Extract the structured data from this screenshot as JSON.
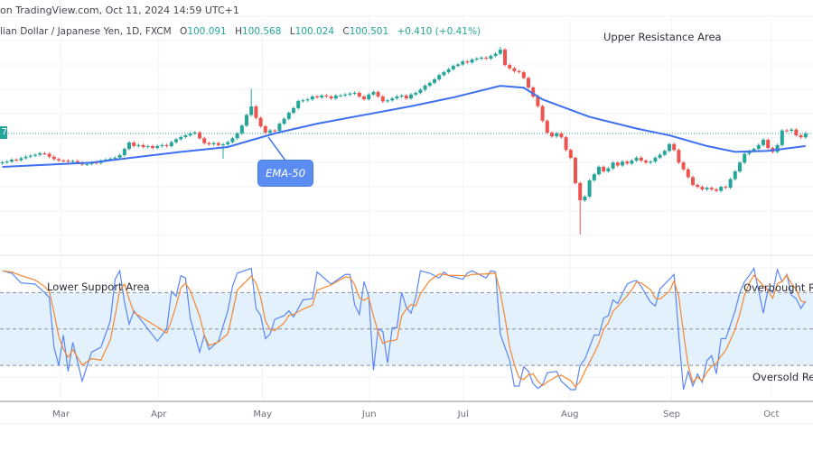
{
  "header": {
    "source_line": "on TradingView.com, Oct 11, 2024 14:59 UTC+1",
    "symbol": "lian Dollar / Japanese Yen, 1D, FXCM",
    "open_label": "O",
    "open": "100.091",
    "high_label": "H",
    "high": "100.568",
    "low_label": "L",
    "low": "100.024",
    "close_label": "C",
    "close": "100.501",
    "change": "+0.410 (+0.41%)"
  },
  "price_label_fragment": "7",
  "annotations": {
    "upper_resistance": "Upper Resistance Area",
    "lower_support": "Lower Support Area",
    "overbought": "Overbought Re",
    "oversold": "Oversold Reg",
    "ema_callout": "EMA-50"
  },
  "colors": {
    "up": "#26a69a",
    "down": "#ef5350",
    "ema": "#3d6ff0",
    "stoch_k": "#5b86f5",
    "stoch_d": "#f5862f",
    "band": "#e3f1fd"
  },
  "chart_data": {
    "type": "candlestick",
    "last_close": 100.501,
    "x_ticks": [
      {
        "label": "Mar",
        "at_index": 12.5
      },
      {
        "label": "Apr",
        "at_index": 33.3
      },
      {
        "label": "May",
        "at_index": 55.4
      },
      {
        "label": "Jun",
        "at_index": 78.1
      },
      {
        "label": "Jul",
        "at_index": 98.1
      },
      {
        "label": "Aug",
        "at_index": 120.8
      },
      {
        "label": "Sep",
        "at_index": 142.5
      },
      {
        "label": "Oct",
        "at_index": 163.7
      }
    ],
    "closes": [
      97.52,
      97.6,
      97.8,
      97.75,
      97.95,
      98.1,
      98.2,
      98.3,
      98.45,
      98.4,
      98.1,
      97.85,
      97.71,
      97.7,
      97.6,
      97.65,
      97.5,
      97.3,
      97.34,
      97.5,
      97.45,
      97.7,
      97.8,
      97.9,
      98.0,
      98.26,
      98.9,
      99.56,
      99.2,
      99.3,
      99.1,
      99.19,
      99.0,
      99.2,
      99.3,
      99.19,
      99.6,
      99.9,
      100.12,
      100.3,
      100.49,
      100.6,
      100.0,
      99.5,
      99.38,
      99.5,
      99.3,
      99.38,
      99.6,
      100.0,
      100.49,
      101.3,
      102.4,
      103.28,
      102.1,
      101.23,
      100.6,
      100.8,
      100.77,
      101.5,
      102.0,
      102.63,
      103.1,
      103.83,
      103.9,
      104.0,
      104.3,
      104.2,
      104.4,
      104.3,
      104.1,
      104.39,
      104.4,
      104.5,
      104.6,
      104.67,
      104.3,
      104.02,
      104.5,
      104.76,
      104.3,
      103.8,
      103.9,
      104.1,
      104.3,
      104.39,
      104.1,
      104.5,
      104.67,
      105.0,
      105.41,
      105.7,
      106.06,
      106.5,
      106.8,
      107.1,
      107.45,
      107.6,
      107.9,
      107.8,
      108.1,
      108.2,
      108.3,
      108.2,
      108.47,
      108.7,
      109.12,
      107.54,
      107.2,
      106.9,
      106.8,
      106.2,
      105.22,
      104.3,
      103.3,
      101.8,
      100.58,
      100.2,
      100.5,
      100.1,
      98.8,
      97.99,
      95.39,
      93.62,
      94.0,
      95.67,
      96.3,
      97.06,
      96.6,
      96.9,
      97.5,
      97.2,
      97.6,
      97.4,
      97.7,
      98.0,
      97.7,
      97.5,
      97.6,
      98.0,
      98.3,
      98.7,
      99.4,
      98.8,
      97.5,
      96.8,
      96.0,
      95.2,
      95.0,
      94.74,
      94.9,
      94.74,
      94.6,
      95.0,
      94.92,
      95.8,
      96.59,
      97.5,
      98.4,
      98.7,
      98.91,
      99.3,
      99.84,
      99.0,
      98.6,
      99.3,
      100.8,
      100.77,
      100.9,
      100.31,
      100.1,
      100.5
    ],
    "wick_extremes": [
      {
        "index": 53,
        "high": 105.1
      },
      {
        "index": 47,
        "low": 97.9
      },
      {
        "index": 123,
        "low": 90.1
      },
      {
        "index": 106,
        "high": 109.4
      }
    ],
    "ema50": {
      "name": "EMA-50",
      "points": [
        [
          0,
          97.06
        ],
        [
          19,
          97.5
        ],
        [
          38,
          98.6
        ],
        [
          48,
          99.1
        ],
        [
          58,
          100.5
        ],
        [
          67,
          101.5
        ],
        [
          77,
          102.4
        ],
        [
          87,
          103.3
        ],
        [
          96,
          104.2
        ],
        [
          106,
          105.4
        ],
        [
          111,
          105.2
        ],
        [
          115,
          104.0
        ],
        [
          125,
          102.2
        ],
        [
          135,
          101.0
        ],
        [
          142,
          100.3
        ],
        [
          150,
          99.2
        ],
        [
          156,
          98.6
        ],
        [
          163,
          98.7
        ],
        [
          171,
          99.2
        ]
      ]
    },
    "stochastic": {
      "range": [
        0,
        100
      ],
      "levels": [
        80,
        50,
        20
      ],
      "k_points": [
        [
          0,
          98
        ],
        [
          2,
          96
        ],
        [
          4,
          88
        ],
        [
          7,
          87
        ],
        [
          9,
          80
        ],
        [
          10,
          76
        ],
        [
          11,
          35
        ],
        [
          12,
          20
        ],
        [
          13,
          45
        ],
        [
          14,
          15
        ],
        [
          15,
          39
        ],
        [
          17,
          7
        ],
        [
          19,
          31
        ],
        [
          21,
          35
        ],
        [
          23,
          57
        ],
        [
          24,
          91
        ],
        [
          25,
          98
        ],
        [
          26,
          72
        ],
        [
          27,
          54
        ],
        [
          28,
          65
        ],
        [
          31,
          50
        ],
        [
          33,
          40
        ],
        [
          35,
          50
        ],
        [
          36,
          81
        ],
        [
          37,
          77
        ],
        [
          38,
          94
        ],
        [
          39,
          92
        ],
        [
          40,
          59
        ],
        [
          42,
          31
        ],
        [
          43,
          45
        ],
        [
          44,
          33
        ],
        [
          46,
          40
        ],
        [
          48,
          65
        ],
        [
          49,
          85
        ],
        [
          50,
          96
        ],
        [
          53,
          100
        ],
        [
          54,
          67
        ],
        [
          55,
          61
        ],
        [
          56,
          42
        ],
        [
          57,
          46
        ],
        [
          58,
          58
        ],
        [
          60,
          61
        ],
        [
          61,
          65
        ],
        [
          62,
          60
        ],
        [
          64,
          74
        ],
        [
          66,
          75
        ],
        [
          67,
          97
        ],
        [
          70,
          87
        ],
        [
          73,
          95
        ],
        [
          74,
          95
        ],
        [
          75,
          70
        ],
        [
          76,
          62
        ],
        [
          77,
          89
        ],
        [
          78,
          77
        ],
        [
          79,
          16
        ],
        [
          80,
          50
        ],
        [
          81,
          48
        ],
        [
          82,
          22
        ],
        [
          83,
          51
        ],
        [
          84,
          51
        ],
        [
          85,
          80
        ],
        [
          86,
          68
        ],
        [
          87,
          63
        ],
        [
          88,
          76
        ],
        [
          89,
          98
        ],
        [
          91,
          96
        ],
        [
          93,
          92
        ],
        [
          94,
          97
        ],
        [
          95,
          94
        ],
        [
          98,
          91
        ],
        [
          99,
          96
        ],
        [
          100,
          98
        ],
        [
          103,
          92
        ],
        [
          104,
          98
        ],
        [
          105,
          97
        ],
        [
          106,
          46
        ],
        [
          107,
          35
        ],
        [
          108,
          24
        ],
        [
          109,
          3
        ],
        [
          110,
          3
        ],
        [
          111,
          19
        ],
        [
          112,
          15
        ],
        [
          113,
          5
        ],
        [
          114,
          1
        ],
        [
          115,
          4
        ],
        [
          116,
          14
        ],
        [
          118,
          15
        ],
        [
          119,
          7
        ],
        [
          121,
          0
        ],
        [
          122,
          0
        ],
        [
          123,
          20
        ],
        [
          124,
          25
        ],
        [
          126,
          45
        ],
        [
          127,
          45
        ],
        [
          128,
          59
        ],
        [
          129,
          61
        ],
        [
          130,
          74
        ],
        [
          131,
          71
        ],
        [
          133,
          87
        ],
        [
          134,
          89
        ],
        [
          135,
          90
        ],
        [
          136,
          85
        ],
        [
          138,
          72
        ],
        [
          139,
          69
        ],
        [
          140,
          83
        ],
        [
          142,
          91
        ],
        [
          143,
          95
        ],
        [
          144,
          45
        ],
        [
          145,
          0
        ],
        [
          146,
          15
        ],
        [
          147,
          3
        ],
        [
          148,
          13
        ],
        [
          149,
          6
        ],
        [
          150,
          24
        ],
        [
          151,
          28
        ],
        [
          152,
          13
        ],
        [
          153,
          42
        ],
        [
          154,
          42
        ],
        [
          156,
          65
        ],
        [
          157,
          80
        ],
        [
          158,
          89
        ],
        [
          159,
          94
        ],
        [
          160,
          100
        ],
        [
          162,
          63
        ],
        [
          163,
          83
        ],
        [
          164,
          80
        ],
        [
          165,
          99
        ],
        [
          166,
          89
        ],
        [
          167,
          95
        ],
        [
          168,
          78
        ],
        [
          169,
          75
        ],
        [
          170,
          67
        ],
        [
          171,
          73
        ]
      ]
    },
    "grid": true
  }
}
